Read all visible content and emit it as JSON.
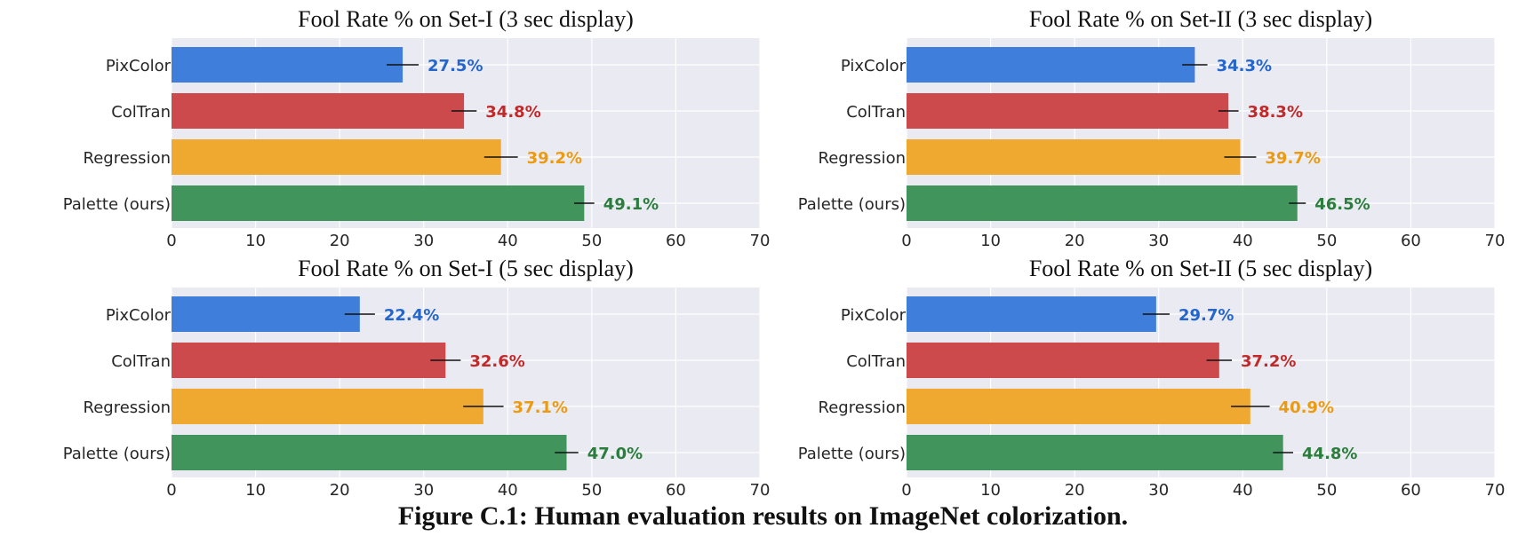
{
  "colors": {
    "blue": "#3f7fdb",
    "red": "#cc4a4c",
    "orange": "#efa930",
    "green": "#41955c",
    "blue_label": "#2466cc",
    "red_label": "#c12a2a",
    "orange_label": "#ec9a10",
    "green_label": "#2a7d3c",
    "plot_bg": "#eaeaf2",
    "grid": "#ffffff",
    "error_bar": "#111111"
  },
  "caption": "Figure C.1: Human evaluation results on ImageNet colorization.",
  "chart_data": [
    {
      "type": "bar",
      "orientation": "horizontal",
      "title": "Fool Rate % on Set-I (3 sec display)",
      "categories": [
        "PixColor",
        "ColTran",
        "Regression",
        "Palette (ours)"
      ],
      "values": [
        27.5,
        34.8,
        39.2,
        49.1
      ],
      "value_labels": [
        "27.5%",
        "34.8%",
        "39.2%",
        "49.1%"
      ],
      "error": [
        1.9,
        1.5,
        2.0,
        1.2
      ],
      "xlim": [
        0,
        70
      ],
      "xticks": [
        0,
        10,
        20,
        30,
        40,
        50,
        60,
        70
      ],
      "xlabel": "",
      "ylabel": "",
      "grid": true
    },
    {
      "type": "bar",
      "orientation": "horizontal",
      "title": "Fool Rate % on Set-II (3 sec display)",
      "categories": [
        "PixColor",
        "ColTran",
        "Regression",
        "Palette (ours)"
      ],
      "values": [
        34.3,
        38.3,
        39.7,
        46.5
      ],
      "value_labels": [
        "34.3%",
        "38.3%",
        "39.7%",
        "46.5%"
      ],
      "error": [
        1.5,
        1.2,
        1.9,
        1.0
      ],
      "xlim": [
        0,
        70
      ],
      "xticks": [
        0,
        10,
        20,
        30,
        40,
        50,
        60,
        70
      ],
      "xlabel": "",
      "ylabel": "",
      "grid": true
    },
    {
      "type": "bar",
      "orientation": "horizontal",
      "title": "Fool Rate % on Set-I (5 sec display)",
      "categories": [
        "PixColor",
        "ColTran",
        "Regression",
        "Palette (ours)"
      ],
      "values": [
        22.4,
        32.6,
        37.1,
        47.0
      ],
      "value_labels": [
        "22.4%",
        "32.6%",
        "37.1%",
        "47.0%"
      ],
      "error": [
        1.8,
        1.8,
        2.4,
        1.4
      ],
      "xlim": [
        0,
        70
      ],
      "xticks": [
        0,
        10,
        20,
        30,
        40,
        50,
        60,
        70
      ],
      "xlabel": "",
      "ylabel": "",
      "grid": true
    },
    {
      "type": "bar",
      "orientation": "horizontal",
      "title": "Fool Rate % on Set-II (5 sec display)",
      "categories": [
        "PixColor",
        "ColTran",
        "Regression",
        "Palette (ours)"
      ],
      "values": [
        29.7,
        37.2,
        40.9,
        44.8
      ],
      "value_labels": [
        "29.7%",
        "37.2%",
        "40.9%",
        "44.8%"
      ],
      "error": [
        1.6,
        1.5,
        2.3,
        1.2
      ],
      "xlim": [
        0,
        70
      ],
      "xticks": [
        0,
        10,
        20,
        30,
        40,
        50,
        60,
        70
      ],
      "xlabel": "",
      "ylabel": "",
      "grid": true
    }
  ]
}
